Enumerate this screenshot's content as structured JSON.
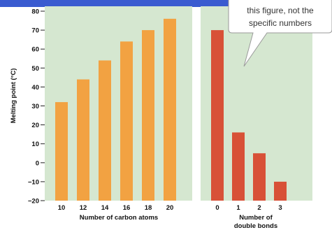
{
  "chart_data": [
    {
      "type": "bar",
      "categories": [
        "10",
        "12",
        "14",
        "16",
        "18",
        "20"
      ],
      "values": [
        32,
        44,
        54,
        64,
        70,
        76
      ],
      "xlabel": "Number of carbon atoms",
      "ylabel": "Melting point (°C)",
      "ylim": [
        -20,
        80
      ],
      "yticks": [
        "80",
        "70",
        "60",
        "50",
        "40",
        "30",
        "20",
        "10",
        "0",
        "−10",
        "−20"
      ],
      "grid": false
    },
    {
      "type": "bar",
      "categories": [
        "0",
        "1",
        "2",
        "3"
      ],
      "values": [
        70,
        16,
        5,
        -10
      ],
      "xlabel": "Number of double bonds",
      "xlabel_lines": [
        "Number of",
        "double bonds"
      ],
      "ylim": [
        -20,
        80
      ],
      "grid": false
    }
  ],
  "callout": {
    "lines": [
      "this figure, not the",
      "specific numbers"
    ]
  },
  "colors": {
    "panel_bg": "#d5e7d0",
    "bar_left": "#f2a242",
    "bar_right": "#d85137",
    "top_bar": "#3a5bd0"
  }
}
